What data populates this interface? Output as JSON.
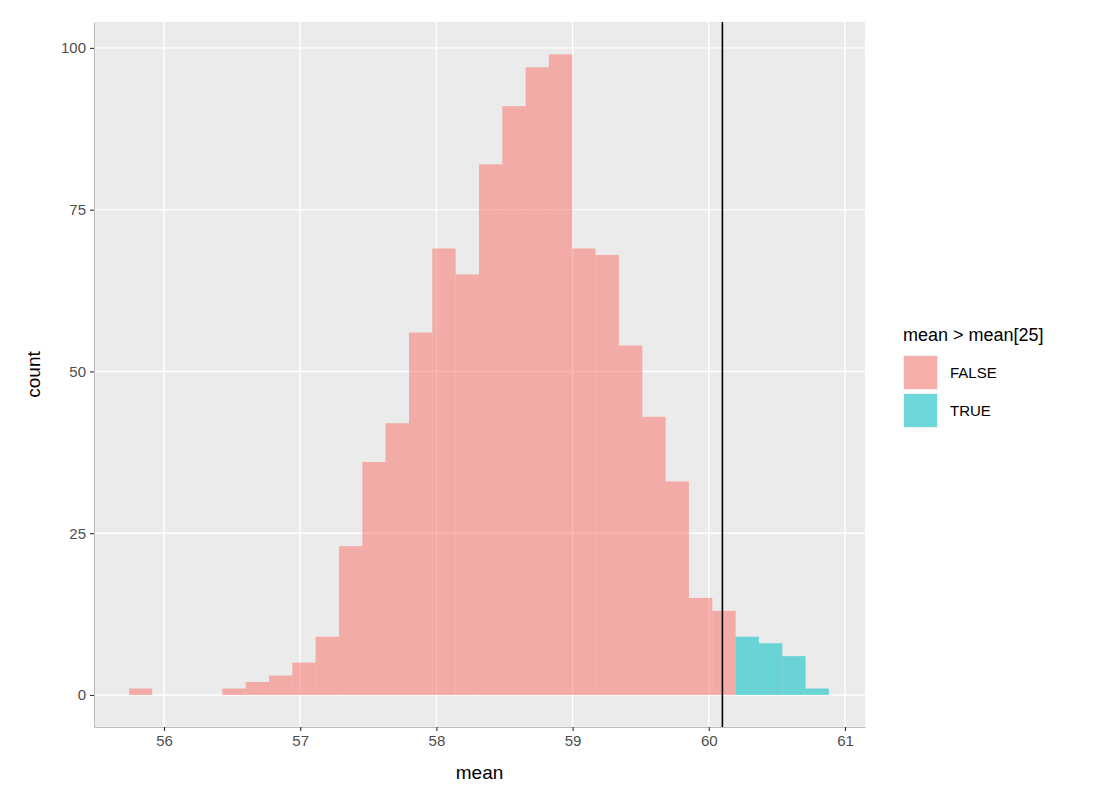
{
  "chart_data": {
    "type": "histogram",
    "stacked": true,
    "grid": true,
    "legend": "right",
    "x_label": "mean",
    "y_label": "count",
    "legend_title": "mean > mean[25]",
    "bins": [
      55.743,
      55.914,
      56.086,
      56.257,
      56.428,
      56.6,
      56.771,
      56.942,
      57.113,
      57.285,
      57.456,
      57.627,
      57.799,
      57.97,
      58.141,
      58.313,
      58.484,
      58.655,
      58.826,
      58.998,
      59.169,
      59.34,
      59.512,
      59.683,
      59.854,
      60.026,
      60.197,
      60.368,
      60.54,
      60.711,
      60.882
    ],
    "series": [
      {
        "name": "FALSE",
        "color": "#F8766D",
        "values": [
          1,
          0,
          0,
          0,
          1,
          2,
          3,
          5,
          9,
          23,
          36,
          42,
          56,
          69,
          65,
          82,
          91,
          97,
          99,
          69,
          68,
          54,
          43,
          33,
          15,
          13,
          0,
          0,
          0,
          0
        ]
      },
      {
        "name": "TRUE",
        "color": "#00BFC4",
        "values": [
          0,
          0,
          0,
          0,
          0,
          0,
          0,
          0,
          0,
          0,
          0,
          0,
          0,
          0,
          0,
          0,
          0,
          0,
          0,
          0,
          0,
          0,
          0,
          0,
          0,
          0,
          9,
          8,
          6,
          1
        ]
      }
    ],
    "vline": 60.1,
    "xlim": [
      55.486,
      61.147
    ],
    "xticks": [
      56,
      57,
      58,
      59,
      60,
      61
    ],
    "ylim": [
      -4.95,
      104.0
    ],
    "yticks": [
      0,
      25,
      50,
      75,
      100
    ]
  }
}
